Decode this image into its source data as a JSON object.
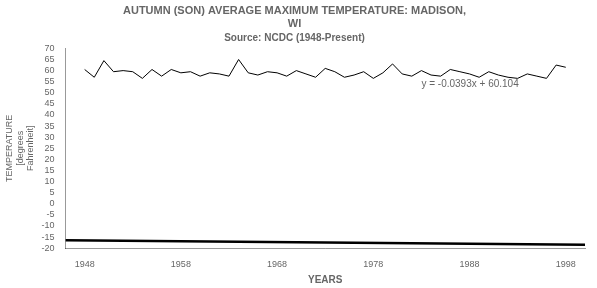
{
  "chart_data": {
    "type": "line",
    "title": [
      "AUTUMN (SON) AVERAGE MAXIMUM TEMPERATURE: MADISON,",
      "WI"
    ],
    "subtitle": "Source: NCDC (1948-Present)",
    "xlabel": "YEARS",
    "ylabel": "TEMPERATURE\n[degrees\nFahrenheit]",
    "xlim": [
      1946,
      2000
    ],
    "ylim": [
      -20,
      70
    ],
    "xticks": [
      1948,
      1958,
      1968,
      1978,
      1988,
      1998
    ],
    "yticks": [
      -20,
      -15,
      -10,
      -5,
      0,
      5,
      10,
      15,
      20,
      25,
      30,
      35,
      40,
      45,
      50,
      55,
      60,
      65,
      70
    ],
    "grid": false,
    "series": [
      {
        "color": "#000000",
        "x": [
          1948,
          1949,
          1950,
          1951,
          1952,
          1953,
          1954,
          1955,
          1956,
          1957,
          1958,
          1959,
          1960,
          1961,
          1962,
          1963,
          1964,
          1965,
          1966,
          1967,
          1968,
          1969,
          1970,
          1971,
          1972,
          1973,
          1974,
          1975,
          1976,
          1977,
          1978,
          1979,
          1980,
          1981,
          1982,
          1983,
          1984,
          1985,
          1986,
          1987,
          1988,
          1989,
          1990,
          1991,
          1992,
          1993,
          1994,
          1995,
          1996,
          1997,
          1998
        ],
        "values": [
          60.5,
          57.0,
          64.5,
          59.5,
          60.0,
          59.5,
          56.5,
          60.5,
          57.5,
          60.5,
          59.0,
          59.5,
          57.5,
          59.0,
          58.5,
          57.5,
          65.0,
          59.0,
          58.0,
          59.5,
          59.0,
          57.5,
          60.0,
          58.5,
          57.0,
          61.0,
          59.5,
          57.0,
          58.0,
          59.5,
          56.5,
          59.0,
          63.0,
          58.5,
          57.5,
          60.0,
          58.0,
          57.5,
          60.5,
          59.5,
          58.5,
          57.0,
          59.5,
          58.0,
          57.0,
          56.5,
          58.5,
          57.5,
          56.5,
          62.5,
          61.5
        ]
      },
      {
        "color": "#000000",
        "x": [
          1946,
          2000
        ],
        "values": [
          -16.3738,
          -18.496
        ]
      }
    ],
    "annotations": [
      {
        "text": "y = -0.0393x + 60.104",
        "x": 1983,
        "y": 52.5
      }
    ]
  }
}
